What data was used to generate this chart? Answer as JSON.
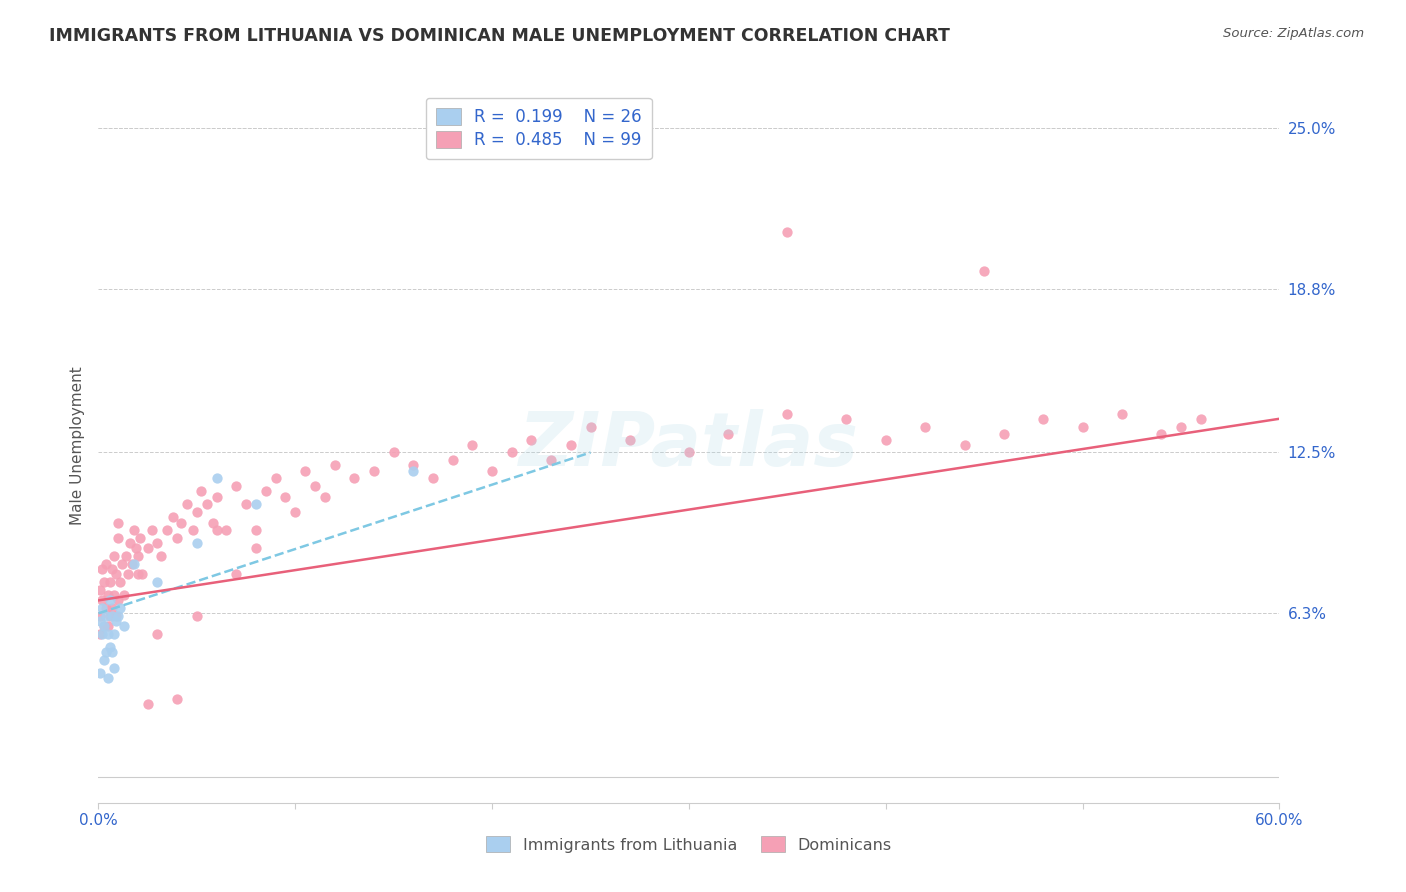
{
  "title": "IMMIGRANTS FROM LITHUANIA VS DOMINICAN MALE UNEMPLOYMENT CORRELATION CHART",
  "source": "Source: ZipAtlas.com",
  "ylabel": "Male Unemployment",
  "xmin": 0.0,
  "xmax": 0.6,
  "ymin": -0.01,
  "ymax": 0.265,
  "yticks": [
    0.063,
    0.125,
    0.188,
    0.25
  ],
  "ytick_labels": [
    "6.3%",
    "12.5%",
    "18.8%",
    "25.0%"
  ],
  "xtick_labels_show": [
    "0.0%",
    "60.0%"
  ],
  "xtick_show_positions": [
    0.0,
    0.6
  ],
  "color_lithuania": "#aacfef",
  "color_dominican": "#f5a0b5",
  "color_line_lithuania": "#7ec8e3",
  "color_line_dominican": "#e8607a",
  "color_title": "#333333",
  "color_axis_labels": "#3366cc",
  "background_color": "#ffffff",
  "watermark": "ZIPatlas",
  "lith_line_x": [
    0.0,
    0.25
  ],
  "lith_line_y": [
    0.063,
    0.125
  ],
  "dom_line_x": [
    0.0,
    0.6
  ],
  "dom_line_y": [
    0.068,
    0.138
  ],
  "lithuania_x": [
    0.001,
    0.001,
    0.002,
    0.002,
    0.003,
    0.003,
    0.004,
    0.004,
    0.005,
    0.005,
    0.006,
    0.006,
    0.007,
    0.007,
    0.008,
    0.008,
    0.009,
    0.01,
    0.011,
    0.013,
    0.018,
    0.03,
    0.05,
    0.06,
    0.08,
    0.16
  ],
  "lithuania_y": [
    0.06,
    0.04,
    0.065,
    0.055,
    0.058,
    0.045,
    0.062,
    0.048,
    0.055,
    0.038,
    0.068,
    0.05,
    0.062,
    0.048,
    0.055,
    0.042,
    0.06,
    0.062,
    0.065,
    0.058,
    0.082,
    0.075,
    0.09,
    0.115,
    0.105,
    0.118
  ],
  "dominican_x": [
    0.001,
    0.001,
    0.001,
    0.002,
    0.002,
    0.003,
    0.003,
    0.004,
    0.004,
    0.005,
    0.005,
    0.006,
    0.006,
    0.007,
    0.007,
    0.008,
    0.008,
    0.009,
    0.009,
    0.01,
    0.01,
    0.011,
    0.012,
    0.013,
    0.014,
    0.015,
    0.016,
    0.017,
    0.018,
    0.019,
    0.02,
    0.021,
    0.022,
    0.025,
    0.027,
    0.03,
    0.032,
    0.035,
    0.038,
    0.04,
    0.042,
    0.045,
    0.048,
    0.05,
    0.052,
    0.055,
    0.058,
    0.06,
    0.065,
    0.07,
    0.075,
    0.08,
    0.085,
    0.09,
    0.095,
    0.1,
    0.105,
    0.11,
    0.115,
    0.12,
    0.13,
    0.14,
    0.15,
    0.16,
    0.17,
    0.18,
    0.19,
    0.2,
    0.21,
    0.22,
    0.23,
    0.24,
    0.25,
    0.27,
    0.3,
    0.32,
    0.35,
    0.38,
    0.4,
    0.42,
    0.44,
    0.46,
    0.48,
    0.5,
    0.52,
    0.54,
    0.56,
    0.01,
    0.02,
    0.03,
    0.05,
    0.06,
    0.07,
    0.08,
    0.35,
    0.45,
    0.55,
    0.04,
    0.025
  ],
  "dominican_y": [
    0.062,
    0.072,
    0.055,
    0.068,
    0.08,
    0.058,
    0.075,
    0.065,
    0.082,
    0.07,
    0.058,
    0.075,
    0.062,
    0.08,
    0.065,
    0.07,
    0.085,
    0.062,
    0.078,
    0.068,
    0.092,
    0.075,
    0.082,
    0.07,
    0.085,
    0.078,
    0.09,
    0.082,
    0.095,
    0.088,
    0.085,
    0.092,
    0.078,
    0.088,
    0.095,
    0.09,
    0.085,
    0.095,
    0.1,
    0.092,
    0.098,
    0.105,
    0.095,
    0.102,
    0.11,
    0.105,
    0.098,
    0.108,
    0.095,
    0.112,
    0.105,
    0.095,
    0.11,
    0.115,
    0.108,
    0.102,
    0.118,
    0.112,
    0.108,
    0.12,
    0.115,
    0.118,
    0.125,
    0.12,
    0.115,
    0.122,
    0.128,
    0.118,
    0.125,
    0.13,
    0.122,
    0.128,
    0.135,
    0.13,
    0.125,
    0.132,
    0.14,
    0.138,
    0.13,
    0.135,
    0.128,
    0.132,
    0.138,
    0.135,
    0.14,
    0.132,
    0.138,
    0.098,
    0.078,
    0.055,
    0.062,
    0.095,
    0.078,
    0.088,
    0.21,
    0.195,
    0.135,
    0.03,
    0.028
  ]
}
